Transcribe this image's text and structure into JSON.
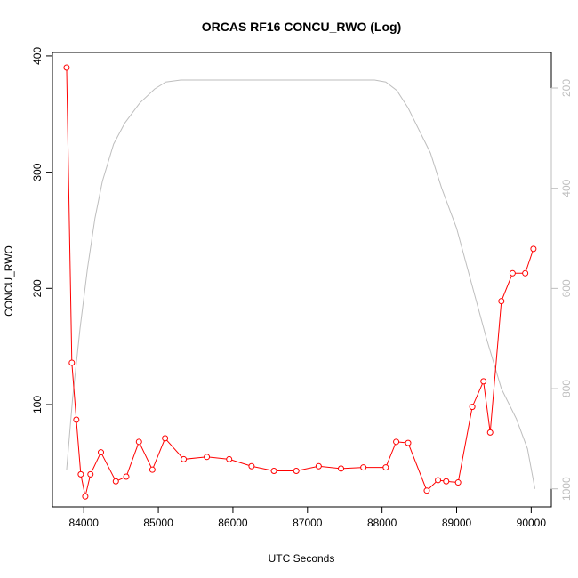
{
  "chart_data": {
    "type": "line",
    "title": "ORCAS RF16 CONCU_RWO (Log)",
    "xlabel": "UTC Seconds",
    "ylabel": "CONCU_RWO",
    "xlim": [
      83580,
      90270
    ],
    "ylim": [
      12,
      403
    ],
    "x_ticks": [
      84000,
      85000,
      86000,
      87000,
      88000,
      89000,
      90000
    ],
    "y_ticks": [
      100,
      200,
      300,
      400
    ],
    "y2_ticks": [
      200,
      400,
      600,
      800,
      1000
    ],
    "y2lim": [
      1036,
      129
    ],
    "grid": false,
    "series": [
      {
        "color": "#ff0000",
        "marker": "open-circle",
        "x": [
          83770,
          83840,
          83900,
          83960,
          84020,
          84090,
          84230,
          84430,
          84570,
          84740,
          84920,
          85090,
          85340,
          85650,
          85950,
          86250,
          86550,
          86850,
          87150,
          87450,
          87750,
          88050,
          88190,
          88350,
          88600,
          88750,
          88860,
          89020,
          89210,
          89360,
          89450,
          89600,
          89750,
          89920,
          90030
        ],
        "y": [
          390,
          136,
          87,
          40,
          21,
          40,
          59,
          34,
          38,
          68,
          44,
          71,
          53,
          55,
          53,
          47,
          43,
          43,
          47,
          45,
          46,
          46,
          68,
          67,
          26,
          35,
          34,
          33,
          98,
          120,
          76,
          189,
          213,
          213,
          234
        ]
      },
      {
        "color": "#bebebe",
        "axis": "right",
        "x": [
          83770,
          83850,
          83950,
          84050,
          84150,
          84250,
          84400,
          84550,
          84750,
          84950,
          85100,
          85300,
          85600,
          86000,
          86500,
          87000,
          87500,
          87900,
          88050,
          88200,
          88350,
          88500,
          88650,
          88800,
          89000,
          89200,
          89400,
          89600,
          89800,
          89950,
          90050
        ],
        "y": [
          962,
          820,
          680,
          560,
          460,
          386,
          312,
          270,
          230,
          202,
          188,
          184,
          184,
          184,
          184,
          184,
          184,
          184,
          188,
          205,
          240,
          285,
          330,
          400,
          480,
          590,
          700,
          800,
          860,
          920,
          1000
        ]
      }
    ]
  }
}
